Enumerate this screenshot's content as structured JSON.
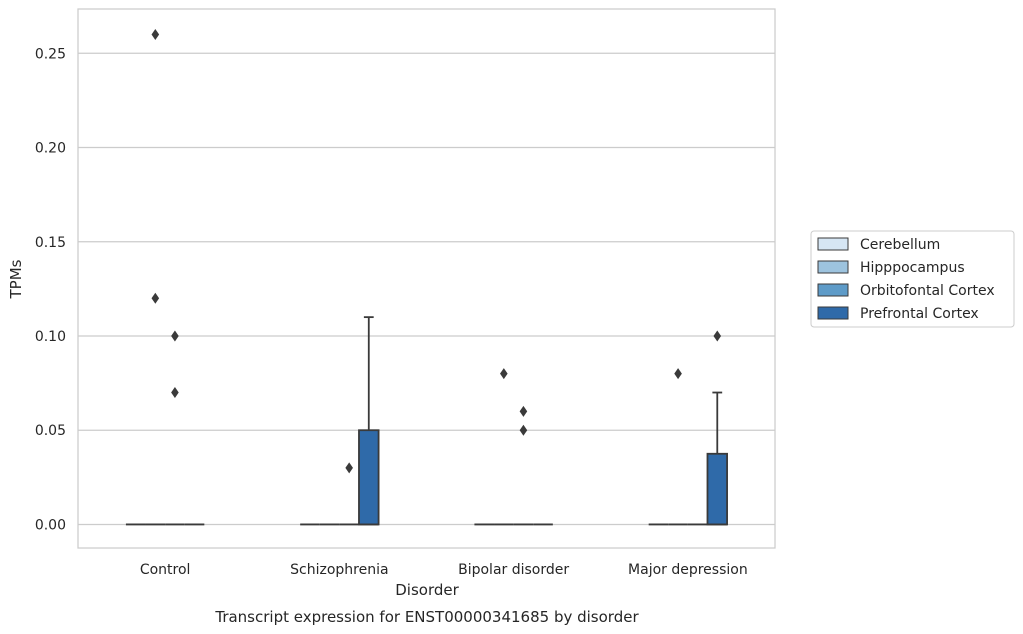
{
  "chart_data": {
    "type": "boxplot",
    "title": "Transcript expression for ENST00000341685 by disorder",
    "xlabel": "Disorder",
    "ylabel": "TPMs",
    "categories": [
      "Control",
      "Schizophrenia",
      "Bipolar disorder",
      "Major depression"
    ],
    "ylim": [
      -0.0125,
      0.2735
    ],
    "yticks": [
      0.0,
      0.05,
      0.1,
      0.15,
      0.2,
      0.25
    ],
    "ytick_labels": [
      "0.00",
      "0.05",
      "0.10",
      "0.15",
      "0.20",
      "0.25"
    ],
    "grid": true,
    "legend_position": "right",
    "series": [
      {
        "name": "Cerebellum",
        "color": "#d6e6f4",
        "boxes": [
          {
            "q1": 0,
            "median": 0,
            "q3": 0,
            "whislo": 0,
            "whishi": 0,
            "fliers": []
          },
          {
            "q1": 0,
            "median": 0,
            "q3": 0,
            "whislo": 0,
            "whishi": 0,
            "fliers": []
          },
          {
            "q1": 0,
            "median": 0,
            "q3": 0,
            "whislo": 0,
            "whishi": 0,
            "fliers": []
          },
          {
            "q1": 0,
            "median": 0,
            "q3": 0,
            "whislo": 0,
            "whishi": 0,
            "fliers": []
          }
        ]
      },
      {
        "name": "Hipppocampus",
        "color": "#9dc3de",
        "boxes": [
          {
            "q1": 0,
            "median": 0,
            "q3": 0,
            "whislo": 0,
            "whishi": 0,
            "fliers": [
              0.26,
              0.12
            ]
          },
          {
            "q1": 0,
            "median": 0,
            "q3": 0,
            "whislo": 0,
            "whishi": 0,
            "fliers": []
          },
          {
            "q1": 0,
            "median": 0,
            "q3": 0,
            "whislo": 0,
            "whishi": 0,
            "fliers": [
              0.08
            ]
          },
          {
            "q1": 0,
            "median": 0,
            "q3": 0,
            "whislo": 0,
            "whishi": 0,
            "fliers": [
              0.08
            ]
          }
        ]
      },
      {
        "name": "Orbitofontal Cortex",
        "color": "#5e9bc8",
        "boxes": [
          {
            "q1": 0,
            "median": 0,
            "q3": 0,
            "whislo": 0,
            "whishi": 0,
            "fliers": [
              0.1,
              0.07
            ]
          },
          {
            "q1": 0,
            "median": 0,
            "q3": 0,
            "whislo": 0,
            "whishi": 0,
            "fliers": [
              0.03
            ]
          },
          {
            "q1": 0,
            "median": 0,
            "q3": 0,
            "whislo": 0,
            "whishi": 0,
            "fliers": [
              0.06,
              0.05
            ]
          },
          {
            "q1": 0,
            "median": 0,
            "q3": 0,
            "whislo": 0,
            "whishi": 0,
            "fliers": []
          }
        ]
      },
      {
        "name": "Prefrontal Cortex",
        "color": "#2f6aa9",
        "boxes": [
          {
            "q1": 0,
            "median": 0,
            "q3": 0,
            "whislo": 0,
            "whishi": 0,
            "fliers": []
          },
          {
            "q1": 0,
            "median": 0,
            "q3": 0.05,
            "whislo": 0,
            "whishi": 0.11,
            "fliers": []
          },
          {
            "q1": 0,
            "median": 0,
            "q3": 0,
            "whislo": 0,
            "whishi": 0,
            "fliers": []
          },
          {
            "q1": 0,
            "median": 0,
            "q3": 0.0375,
            "whislo": 0,
            "whishi": 0.07,
            "fliers": [
              0.1
            ]
          }
        ]
      }
    ]
  }
}
